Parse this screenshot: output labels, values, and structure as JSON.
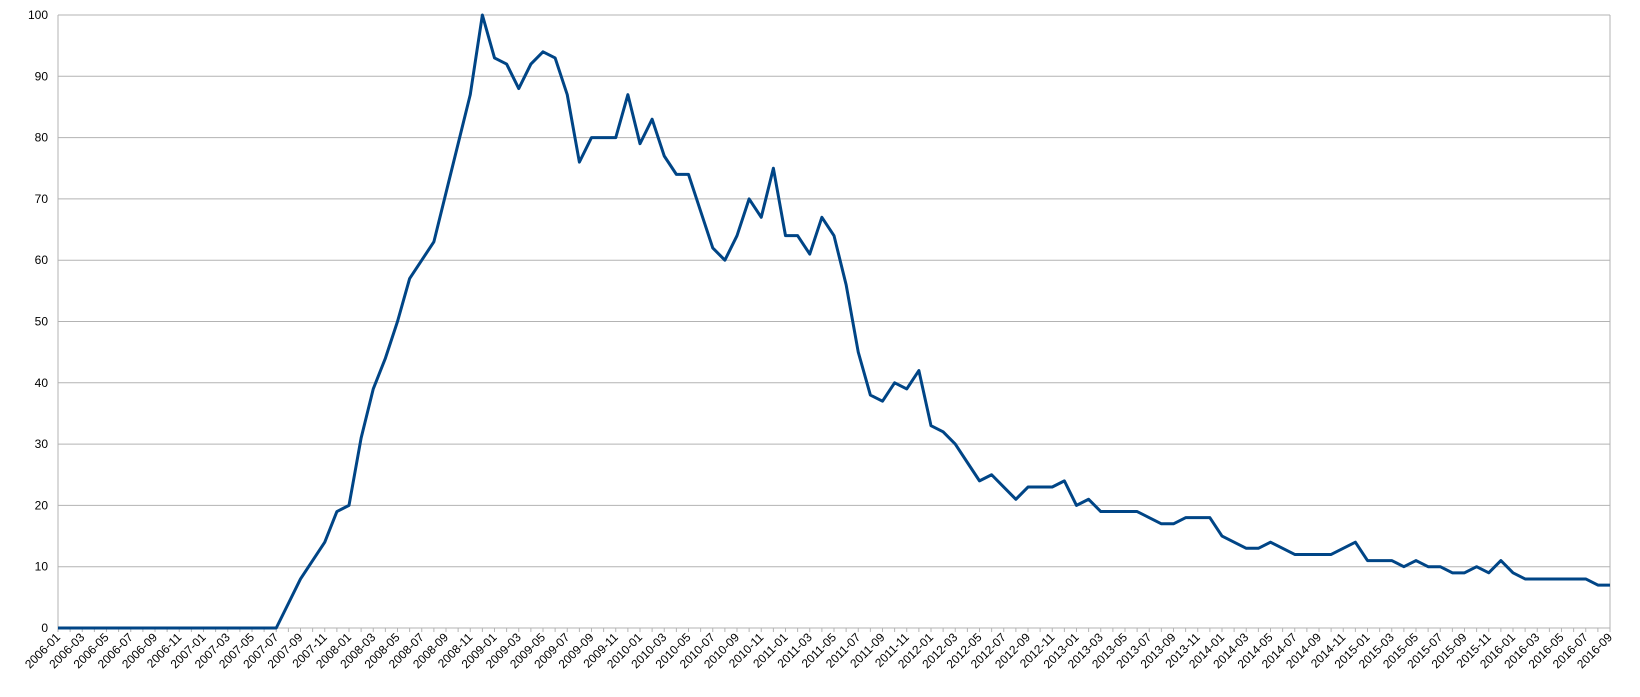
{
  "chart_data": {
    "type": "line",
    "categories": [
      "2006-01",
      null,
      "2006-03",
      null,
      "2006-05",
      null,
      "2006-07",
      null,
      "2006-09",
      null,
      "2006-11",
      null,
      "2007-01",
      null,
      "2007-03",
      null,
      "2007-05",
      null,
      "2007-07",
      null,
      "2007-09",
      null,
      "2007-11",
      null,
      "2008-01",
      null,
      "2008-03",
      null,
      "2008-05",
      null,
      "2008-07",
      null,
      "2008-09",
      null,
      "2008-11",
      null,
      "2009-01",
      null,
      "2009-03",
      null,
      "2009-05",
      null,
      "2009-07",
      null,
      "2009-09",
      null,
      "2009-11",
      null,
      "2010-01",
      null,
      "2010-03",
      null,
      "2010-05",
      null,
      "2010-07",
      null,
      "2010-09",
      null,
      "2010-11",
      null,
      "2011-01",
      null,
      "2011-03",
      null,
      "2011-05",
      null,
      "2011-07",
      null,
      "2011-09",
      null,
      "2011-11",
      null,
      "2012-01",
      null,
      "2012-03",
      null,
      "2012-05",
      null,
      "2012-07",
      null,
      "2012-09",
      null,
      "2012-11",
      null,
      "2013-01",
      null,
      "2013-03",
      null,
      "2013-05",
      null,
      "2013-07",
      null,
      "2013-09",
      null,
      "2013-11",
      null,
      "2014-01",
      null,
      "2014-03",
      null,
      "2014-05",
      null,
      "2014-07",
      null,
      "2014-09",
      null,
      "2014-11",
      null,
      "2015-01",
      null,
      "2015-03",
      null,
      "2015-05",
      null,
      "2015-07",
      null,
      "2015-09",
      null,
      "2015-11",
      null,
      "2016-01",
      null,
      "2016-03",
      null,
      "2016-05",
      null,
      "2016-07",
      null,
      "2016-09"
    ],
    "series": [
      {
        "color": "#004586",
        "values": [
          0,
          0,
          0,
          0,
          0,
          0,
          0,
          0,
          0,
          0,
          0,
          0,
          0,
          0,
          0,
          0,
          0,
          0,
          0,
          4,
          8,
          11,
          14,
          19,
          20,
          31,
          39,
          44,
          50,
          57,
          60,
          63,
          71,
          79,
          87,
          100,
          93,
          92,
          88,
          92,
          94,
          93,
          87,
          76,
          80,
          80,
          80,
          87,
          79,
          83,
          77,
          74,
          74,
          68,
          62,
          60,
          64,
          70,
          67,
          75,
          64,
          64,
          61,
          67,
          64,
          56,
          45,
          38,
          37,
          40,
          39,
          42,
          33,
          32,
          30,
          27,
          24,
          25,
          23,
          21,
          23,
          23,
          23,
          24,
          20,
          21,
          19,
          19,
          19,
          19,
          18,
          17,
          17,
          18,
          18,
          18,
          15,
          14,
          13,
          13,
          14,
          13,
          12,
          12,
          12,
          12,
          13,
          14,
          11,
          11,
          11,
          10,
          11,
          10,
          10,
          9,
          9,
          10,
          9,
          11,
          9,
          8,
          8,
          8,
          8,
          8,
          8,
          7,
          7
        ]
      }
    ],
    "ylim": [
      0,
      100
    ],
    "yticks": [
      0,
      10,
      20,
      30,
      40,
      50,
      60,
      70,
      80,
      90,
      100
    ],
    "grid": true
  }
}
